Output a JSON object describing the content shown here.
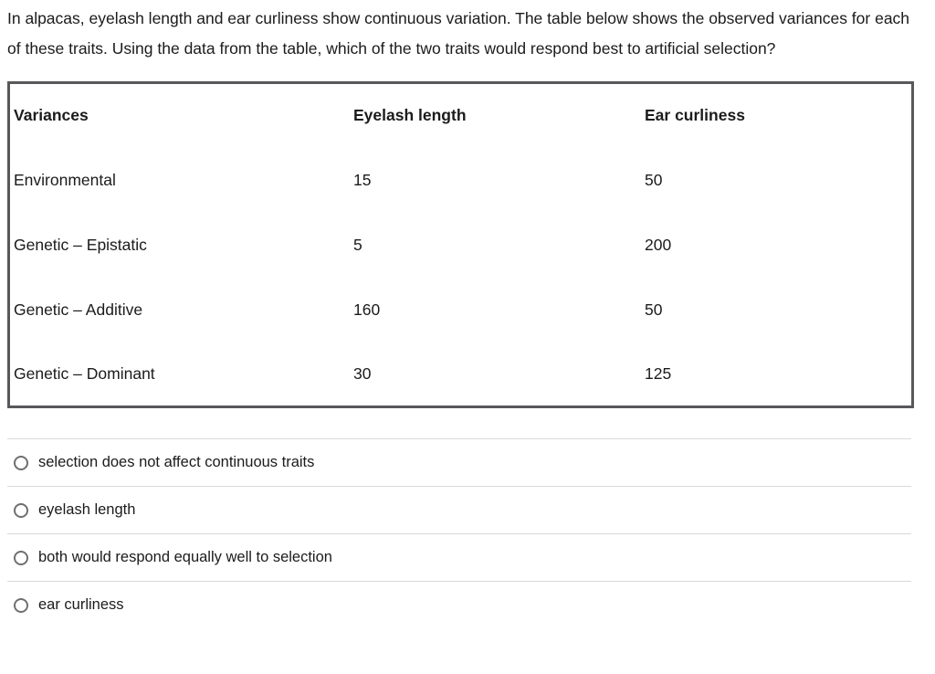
{
  "question": {
    "text": "In alpacas, eyelash length and ear curliness show continuous variation. The table below shows the observed variances for each of these traits. Using the data from the table, which of the two traits would respond best to artificial selection?"
  },
  "table": {
    "columns": [
      "Variances",
      "Eyelash length",
      "Ear curliness"
    ],
    "rows": [
      {
        "label": "Environmental",
        "eyelash_length": "15",
        "ear_curliness": "50"
      },
      {
        "label": "Genetic – Epistatic",
        "eyelash_length": "5",
        "ear_curliness": "200"
      },
      {
        "label": "Genetic – Additive",
        "eyelash_length": "160",
        "ear_curliness": "50"
      },
      {
        "label": "Genetic – Dominant",
        "eyelash_length": "30",
        "ear_curliness": "125"
      }
    ]
  },
  "options": [
    {
      "label": "selection does not affect continuous traits",
      "selected": false
    },
    {
      "label": "eyelash length",
      "selected": false
    },
    {
      "label": "both would respond equally well to selection",
      "selected": false
    },
    {
      "label": "ear curliness",
      "selected": false
    }
  ],
  "colors": {
    "text": "#1b1b1b",
    "table_border": "#58585b",
    "divider": "#d9d9d9",
    "radio_border": "#6f6f6f",
    "background": "#ffffff"
  }
}
